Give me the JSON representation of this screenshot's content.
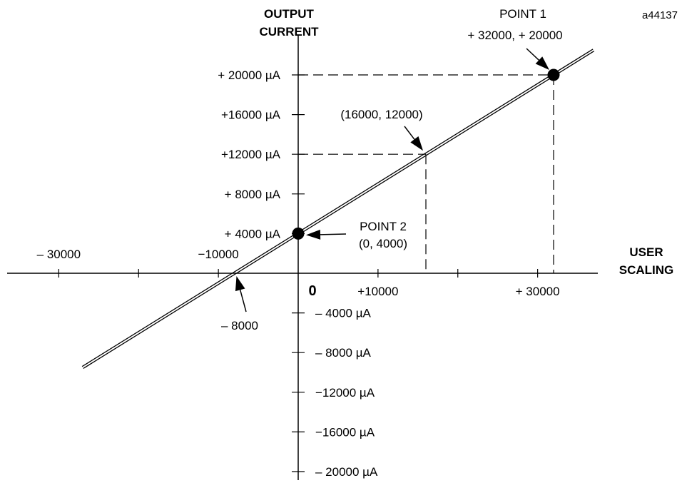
{
  "figure_code": "a44137",
  "chart_data": {
    "type": "line",
    "title": "",
    "xlabel": "USER SCALING",
    "ylabel_lines": [
      "OUTPUT",
      "CURRENT"
    ],
    "origin_label": "0",
    "x_ticks": [
      {
        "value": -30000,
        "label": "– 30000"
      },
      {
        "value": -20000,
        "label": ""
      },
      {
        "value": -10000,
        "label": "−10000"
      },
      {
        "value": 10000,
        "label": "+10000"
      },
      {
        "value": 20000,
        "label": ""
      },
      {
        "value": 30000,
        "label": "+ 30000"
      }
    ],
    "y_ticks": [
      {
        "value": 20000,
        "label": "+ 20000 µA"
      },
      {
        "value": 16000,
        "label": "+16000 µA"
      },
      {
        "value": 12000,
        "label": "+12000 µA"
      },
      {
        "value": 8000,
        "label": "+ 8000 µA"
      },
      {
        "value": 4000,
        "label": "+ 4000 µA"
      },
      {
        "value": -4000,
        "label": "– 4000 µA"
      },
      {
        "value": -8000,
        "label": "– 8000 µA"
      },
      {
        "value": -12000,
        "label": "−12000 µA"
      },
      {
        "value": -16000,
        "label": "−16000 µA"
      },
      {
        "value": -20000,
        "label": "– 20000 µA"
      }
    ],
    "line_x_range": [
      -27000,
      37000
    ],
    "series": [
      {
        "x": [
          -8000,
          0,
          16000,
          32000
        ],
        "y": [
          0,
          4000,
          12000,
          20000
        ]
      }
    ],
    "points": [
      {
        "x": 32000,
        "y": 20000,
        "marker": true,
        "lines": [
          "POINT  1",
          "+ 32000,    + 20000"
        ]
      },
      {
        "x": 0,
        "y": 4000,
        "marker": true,
        "lines": [
          "POINT  2",
          "(0, 4000)"
        ]
      },
      {
        "x": 16000,
        "y": 12000,
        "marker": false,
        "lines": [
          "(16000, 12000)"
        ]
      },
      {
        "x": -8000,
        "y": 0,
        "marker": false,
        "lines": [
          "– 8000"
        ]
      }
    ],
    "dashed_guides": [
      {
        "x": 32000,
        "y": 20000
      },
      {
        "x": 16000,
        "y": 12000
      }
    ]
  }
}
